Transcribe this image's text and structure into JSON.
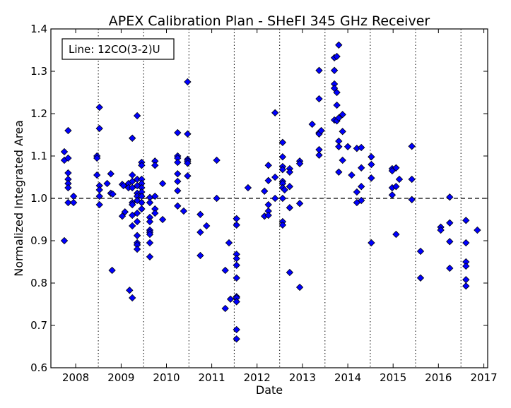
{
  "chart_data": {
    "type": "scatter",
    "title": "APEX Calibration Plan - SHeFI 345 GHz Receiver",
    "xlabel": "Date",
    "ylabel": "Normalized Integrated Area",
    "xlim": [
      "2007-06-15",
      "2017-02-01"
    ],
    "ylim": [
      0.6,
      1.4
    ],
    "x_ticks": [
      {
        "date": "2008-01-01",
        "label": "2008"
      },
      {
        "date": "2009-01-01",
        "label": "2009"
      },
      {
        "date": "2010-01-01",
        "label": "2010"
      },
      {
        "date": "2011-01-01",
        "label": "2011"
      },
      {
        "date": "2012-01-01",
        "label": "2012"
      },
      {
        "date": "2013-01-01",
        "label": "2013"
      },
      {
        "date": "2014-01-01",
        "label": "2014"
      },
      {
        "date": "2015-01-01",
        "label": "2015"
      },
      {
        "date": "2016-01-01",
        "label": "2016"
      },
      {
        "date": "2017-01-01",
        "label": "2017"
      }
    ],
    "y_ticks": [
      0.6,
      0.7,
      0.8,
      0.9,
      1.0,
      1.1,
      1.2,
      1.3,
      1.4
    ],
    "y_tick_labels": [
      "0.6",
      "0.7",
      "0.8",
      "0.9",
      "1.0",
      "1.1",
      "1.2",
      "1.3",
      "1.4"
    ],
    "reference_line": {
      "y": 1.0,
      "style": "dashed"
    },
    "vertical_dotted_lines": [
      "2008-07-01",
      "2009-07-01",
      "2010-07-01",
      "2011-07-01",
      "2012-07-01",
      "2013-07-01",
      "2014-07-01",
      "2015-07-01",
      "2016-07-01"
    ],
    "legend": {
      "text": "Line: 12CO(3-2)U",
      "position": "top-left"
    },
    "marker_color": "#0000ff",
    "marker_edge_color": "#000000",
    "points": [
      {
        "x": "2007-10-01",
        "y": 1.11
      },
      {
        "x": "2007-10-01",
        "y": 1.09
      },
      {
        "x": "2007-10-01",
        "y": 0.9
      },
      {
        "x": "2007-11-01",
        "y": 1.16
      },
      {
        "x": "2007-11-01",
        "y": 1.095
      },
      {
        "x": "2007-11-01",
        "y": 1.06
      },
      {
        "x": "2007-11-01",
        "y": 1.045
      },
      {
        "x": "2007-11-01",
        "y": 1.035
      },
      {
        "x": "2007-11-01",
        "y": 1.025
      },
      {
        "x": "2007-11-01",
        "y": 0.99
      },
      {
        "x": "2007-12-15",
        "y": 1.005
      },
      {
        "x": "2007-12-15",
        "y": 0.99
      },
      {
        "x": "2008-06-20",
        "y": 1.1
      },
      {
        "x": "2008-06-20",
        "y": 1.095
      },
      {
        "x": "2008-06-20",
        "y": 1.055
      },
      {
        "x": "2008-07-10",
        "y": 1.215
      },
      {
        "x": "2008-07-10",
        "y": 1.165
      },
      {
        "x": "2008-07-10",
        "y": 1.03
      },
      {
        "x": "2008-07-10",
        "y": 1.02
      },
      {
        "x": "2008-07-10",
        "y": 1.005
      },
      {
        "x": "2008-07-10",
        "y": 0.985
      },
      {
        "x": "2008-09-10",
        "y": 1.035
      },
      {
        "x": "2008-10-10",
        "y": 1.058
      },
      {
        "x": "2008-10-10",
        "y": 1.012
      },
      {
        "x": "2008-10-25",
        "y": 1.01
      },
      {
        "x": "2008-10-20",
        "y": 0.83
      },
      {
        "x": "2009-01-10",
        "y": 1.033
      },
      {
        "x": "2009-01-20",
        "y": 1.03
      },
      {
        "x": "2009-01-10",
        "y": 0.958
      },
      {
        "x": "2009-02-01",
        "y": 0.968
      },
      {
        "x": "2009-03-01",
        "y": 1.035
      },
      {
        "x": "2009-03-01",
        "y": 1.025
      },
      {
        "x": "2009-03-10",
        "y": 0.783
      },
      {
        "x": "2009-04-01",
        "y": 1.142
      },
      {
        "x": "2009-04-01",
        "y": 1.055
      },
      {
        "x": "2009-04-01",
        "y": 1.04
      },
      {
        "x": "2009-04-01",
        "y": 1.025
      },
      {
        "x": "2009-04-01",
        "y": 0.99
      },
      {
        "x": "2009-04-01",
        "y": 0.985
      },
      {
        "x": "2009-04-01",
        "y": 0.96
      },
      {
        "x": "2009-04-01",
        "y": 0.935
      },
      {
        "x": "2009-04-01",
        "y": 0.765
      },
      {
        "x": "2009-05-10",
        "y": 1.195
      },
      {
        "x": "2009-05-10",
        "y": 1.045
      },
      {
        "x": "2009-05-10",
        "y": 1.03
      },
      {
        "x": "2009-05-10",
        "y": 1.012
      },
      {
        "x": "2009-05-10",
        "y": 1.005
      },
      {
        "x": "2009-05-10",
        "y": 0.995
      },
      {
        "x": "2009-05-10",
        "y": 0.965
      },
      {
        "x": "2009-05-10",
        "y": 0.945
      },
      {
        "x": "2009-05-10",
        "y": 0.912
      },
      {
        "x": "2009-05-10",
        "y": 0.895
      },
      {
        "x": "2009-05-10",
        "y": 0.89
      },
      {
        "x": "2009-05-10",
        "y": 0.88
      },
      {
        "x": "2009-06-15",
        "y": 1.085
      },
      {
        "x": "2009-06-15",
        "y": 1.078
      },
      {
        "x": "2009-06-15",
        "y": 1.045
      },
      {
        "x": "2009-06-15",
        "y": 1.035
      },
      {
        "x": "2009-06-15",
        "y": 1.025
      },
      {
        "x": "2009-06-15",
        "y": 1.015
      },
      {
        "x": "2009-06-15",
        "y": 1.005
      },
      {
        "x": "2009-06-15",
        "y": 0.99
      },
      {
        "x": "2009-06-15",
        "y": 0.975
      },
      {
        "x": "2009-08-20",
        "y": 1.002
      },
      {
        "x": "2009-08-20",
        "y": 0.99
      },
      {
        "x": "2009-08-20",
        "y": 0.955
      },
      {
        "x": "2009-08-20",
        "y": 0.945
      },
      {
        "x": "2009-08-20",
        "y": 0.925
      },
      {
        "x": "2009-08-20",
        "y": 0.92
      },
      {
        "x": "2009-08-20",
        "y": 0.915
      },
      {
        "x": "2009-08-20",
        "y": 0.895
      },
      {
        "x": "2009-08-20",
        "y": 0.862
      },
      {
        "x": "2009-10-01",
        "y": 1.088
      },
      {
        "x": "2009-10-01",
        "y": 1.078
      },
      {
        "x": "2009-10-01",
        "y": 1.005
      },
      {
        "x": "2009-10-01",
        "y": 0.975
      },
      {
        "x": "2009-10-01",
        "y": 0.965
      },
      {
        "x": "2009-12-01",
        "y": 1.035
      },
      {
        "x": "2009-12-01",
        "y": 0.95
      },
      {
        "x": "2010-04-01",
        "y": 1.155
      },
      {
        "x": "2010-04-01",
        "y": 1.1
      },
      {
        "x": "2010-04-01",
        "y": 1.095
      },
      {
        "x": "2010-04-01",
        "y": 1.085
      },
      {
        "x": "2010-04-01",
        "y": 1.058
      },
      {
        "x": "2010-04-01",
        "y": 1.04
      },
      {
        "x": "2010-04-01",
        "y": 1.018
      },
      {
        "x": "2010-04-01",
        "y": 0.982
      },
      {
        "x": "2010-05-20",
        "y": 0.97
      },
      {
        "x": "2010-06-20",
        "y": 1.275
      },
      {
        "x": "2010-06-20",
        "y": 1.152
      },
      {
        "x": "2010-06-20",
        "y": 1.092
      },
      {
        "x": "2010-06-20",
        "y": 1.088
      },
      {
        "x": "2010-06-20",
        "y": 1.083
      },
      {
        "x": "2010-06-20",
        "y": 1.053
      },
      {
        "x": "2010-10-01",
        "y": 0.962
      },
      {
        "x": "2010-10-01",
        "y": 0.92
      },
      {
        "x": "2010-10-01",
        "y": 0.865
      },
      {
        "x": "2010-11-20",
        "y": 0.935
      },
      {
        "x": "2011-02-10",
        "y": 1.09
      },
      {
        "x": "2011-02-10",
        "y": 1.0
      },
      {
        "x": "2011-04-20",
        "y": 0.83
      },
      {
        "x": "2011-04-20",
        "y": 0.74
      },
      {
        "x": "2011-05-20",
        "y": 0.895
      },
      {
        "x": "2011-06-01",
        "y": 0.762
      },
      {
        "x": "2011-07-20",
        "y": 0.952
      },
      {
        "x": "2011-07-20",
        "y": 0.937
      },
      {
        "x": "2011-07-20",
        "y": 0.868
      },
      {
        "x": "2011-07-20",
        "y": 0.858
      },
      {
        "x": "2011-07-20",
        "y": 0.842
      },
      {
        "x": "2011-07-20",
        "y": 0.812
      },
      {
        "x": "2011-07-20",
        "y": 0.768
      },
      {
        "x": "2011-07-20",
        "y": 0.765
      },
      {
        "x": "2011-07-20",
        "y": 0.756
      },
      {
        "x": "2011-07-20",
        "y": 0.69
      },
      {
        "x": "2011-07-20",
        "y": 0.668
      },
      {
        "x": "2011-10-20",
        "y": 1.025
      },
      {
        "x": "2012-03-01",
        "y": 1.017
      },
      {
        "x": "2012-03-01",
        "y": 0.958
      },
      {
        "x": "2012-04-01",
        "y": 1.078
      },
      {
        "x": "2012-04-01",
        "y": 1.042
      },
      {
        "x": "2012-04-01",
        "y": 0.985
      },
      {
        "x": "2012-04-01",
        "y": 0.97
      },
      {
        "x": "2012-04-01",
        "y": 0.96
      },
      {
        "x": "2012-05-25",
        "y": 1.202
      },
      {
        "x": "2012-05-25",
        "y": 1.05
      },
      {
        "x": "2012-05-25",
        "y": 1.0
      },
      {
        "x": "2012-07-25",
        "y": 1.132
      },
      {
        "x": "2012-07-25",
        "y": 1.098
      },
      {
        "x": "2012-07-25",
        "y": 1.075
      },
      {
        "x": "2012-07-25",
        "y": 1.068
      },
      {
        "x": "2012-07-25",
        "y": 1.04
      },
      {
        "x": "2012-07-25",
        "y": 1.035
      },
      {
        "x": "2012-07-25",
        "y": 1.025
      },
      {
        "x": "2012-07-25",
        "y": 1.0
      },
      {
        "x": "2012-07-25",
        "y": 0.945
      },
      {
        "x": "2012-07-25",
        "y": 0.937
      },
      {
        "x": "2012-08-10",
        "y": 1.02
      },
      {
        "x": "2012-09-20",
        "y": 1.07
      },
      {
        "x": "2012-09-20",
        "y": 1.062
      },
      {
        "x": "2012-09-20",
        "y": 1.028
      },
      {
        "x": "2012-09-20",
        "y": 0.978
      },
      {
        "x": "2012-09-20",
        "y": 0.825
      },
      {
        "x": "2012-12-10",
        "y": 1.088
      },
      {
        "x": "2012-12-10",
        "y": 1.082
      },
      {
        "x": "2012-12-10",
        "y": 0.988
      },
      {
        "x": "2012-12-10",
        "y": 0.79
      },
      {
        "x": "2013-03-20",
        "y": 1.175
      },
      {
        "x": "2013-05-15",
        "y": 1.302
      },
      {
        "x": "2013-05-15",
        "y": 1.235
      },
      {
        "x": "2013-05-15",
        "y": 1.155
      },
      {
        "x": "2013-05-15",
        "y": 1.152
      },
      {
        "x": "2013-05-15",
        "y": 1.115
      },
      {
        "x": "2013-05-15",
        "y": 1.102
      },
      {
        "x": "2013-06-01",
        "y": 1.16
      },
      {
        "x": "2013-09-15",
        "y": 1.332
      },
      {
        "x": "2013-09-15",
        "y": 1.302
      },
      {
        "x": "2013-09-15",
        "y": 1.27
      },
      {
        "x": "2013-09-15",
        "y": 1.26
      },
      {
        "x": "2013-09-15",
        "y": 1.185
      },
      {
        "x": "2013-10-05",
        "y": 1.335
      },
      {
        "x": "2013-10-05",
        "y": 1.25
      },
      {
        "x": "2013-10-05",
        "y": 1.22
      },
      {
        "x": "2013-10-05",
        "y": 1.183
      },
      {
        "x": "2013-10-20",
        "y": 1.362
      },
      {
        "x": "2013-10-20",
        "y": 1.19
      },
      {
        "x": "2013-10-20",
        "y": 1.135
      },
      {
        "x": "2013-10-20",
        "y": 1.122
      },
      {
        "x": "2013-10-20",
        "y": 1.062
      },
      {
        "x": "2013-11-20",
        "y": 1.198
      },
      {
        "x": "2013-11-20",
        "y": 1.158
      },
      {
        "x": "2013-11-20",
        "y": 1.09
      },
      {
        "x": "2014-01-01",
        "y": 1.122
      },
      {
        "x": "2014-02-01",
        "y": 1.055
      },
      {
        "x": "2014-03-15",
        "y": 1.118
      },
      {
        "x": "2014-03-15",
        "y": 1.015
      },
      {
        "x": "2014-03-15",
        "y": 0.99
      },
      {
        "x": "2014-04-20",
        "y": 1.12
      },
      {
        "x": "2014-04-20",
        "y": 1.072
      },
      {
        "x": "2014-04-20",
        "y": 1.028
      },
      {
        "x": "2014-04-20",
        "y": 0.995
      },
      {
        "x": "2014-07-10",
        "y": 1.098
      },
      {
        "x": "2014-07-10",
        "y": 1.08
      },
      {
        "x": "2014-07-10",
        "y": 1.048
      },
      {
        "x": "2014-07-10",
        "y": 0.895
      },
      {
        "x": "2014-12-25",
        "y": 1.07
      },
      {
        "x": "2014-12-25",
        "y": 1.065
      },
      {
        "x": "2014-12-25",
        "y": 1.025
      },
      {
        "x": "2014-12-25",
        "y": 1.008
      },
      {
        "x": "2015-01-25",
        "y": 1.072
      },
      {
        "x": "2015-01-25",
        "y": 1.028
      },
      {
        "x": "2015-01-25",
        "y": 0.915
      },
      {
        "x": "2015-02-20",
        "y": 1.045
      },
      {
        "x": "2015-06-01",
        "y": 1.123
      },
      {
        "x": "2015-06-01",
        "y": 1.045
      },
      {
        "x": "2015-06-01",
        "y": 0.997
      },
      {
        "x": "2015-08-10",
        "y": 0.875
      },
      {
        "x": "2015-08-10",
        "y": 0.812
      },
      {
        "x": "2016-01-20",
        "y": 0.932
      },
      {
        "x": "2016-01-20",
        "y": 0.925
      },
      {
        "x": "2016-04-01",
        "y": 1.003
      },
      {
        "x": "2016-04-01",
        "y": 0.942
      },
      {
        "x": "2016-04-01",
        "y": 0.898
      },
      {
        "x": "2016-04-01",
        "y": 0.835
      },
      {
        "x": "2016-08-10",
        "y": 0.948
      },
      {
        "x": "2016-08-10",
        "y": 0.895
      },
      {
        "x": "2016-08-10",
        "y": 0.85
      },
      {
        "x": "2016-08-10",
        "y": 0.84
      },
      {
        "x": "2016-08-10",
        "y": 0.808
      },
      {
        "x": "2016-08-10",
        "y": 0.793
      },
      {
        "x": "2016-11-10",
        "y": 0.925
      }
    ]
  }
}
